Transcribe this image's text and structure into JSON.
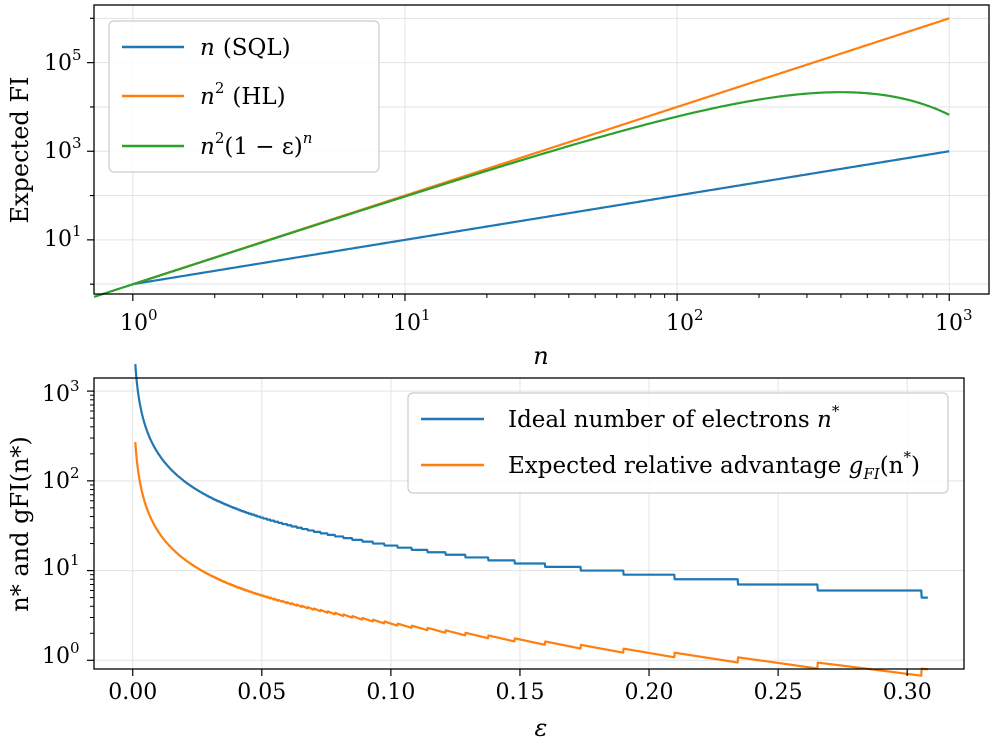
{
  "chart_data": [
    {
      "type": "line",
      "xscale": "log",
      "yscale": "log",
      "xlim": [
        0.72,
        1400
      ],
      "ylim": [
        0.6,
        2000000
      ],
      "x_ticks": [
        {
          "base": "10",
          "exp": "0"
        },
        {
          "base": "10",
          "exp": "1"
        },
        {
          "base": "10",
          "exp": "2"
        },
        {
          "base": "10",
          "exp": "3"
        }
      ],
      "y_ticks": [
        {
          "base": "10",
          "exp": "1"
        },
        {
          "base": "10",
          "exp": "3"
        },
        {
          "base": "10",
          "exp": "5"
        }
      ],
      "xlabel": "n",
      "ylabel": "Expected FI",
      "grid": true,
      "legend_position": "top-left",
      "epsilon": 0.005,
      "series": [
        {
          "name": "n (SQL)",
          "color": "#1f77b4",
          "formula": "n",
          "x_range": [
            1,
            1000
          ]
        },
        {
          "name": "n² (HL)",
          "color": "#ff7f0e",
          "formula": "n^2",
          "x_range": [
            1,
            1000
          ]
        },
        {
          "name": "n²(1 − ε)ⁿ",
          "color": "#2ca02c",
          "formula": "n^2 (1-eps)^n",
          "x_range": [
            0.72,
            1000
          ]
        }
      ]
    },
    {
      "type": "line",
      "xscale": "linear",
      "yscale": "log",
      "xlim": [
        -0.015,
        0.322
      ],
      "ylim": [
        0.8,
        1400
      ],
      "x_ticks": [
        "0.00",
        "0.05",
        "0.10",
        "0.15",
        "0.20",
        "0.25",
        "0.30"
      ],
      "y_ticks": [
        {
          "base": "10",
          "exp": "0"
        },
        {
          "base": "10",
          "exp": "1"
        },
        {
          "base": "10",
          "exp": "2"
        },
        {
          "base": "10",
          "exp": "3"
        }
      ],
      "xlabel": "ε",
      "ylabel": "n* and gFI(n*)",
      "grid": true,
      "legend_position": "top-right",
      "x_range": [
        0.001,
        0.308
      ],
      "series": [
        {
          "name": "Ideal number of electrons n*",
          "color": "#1f77b4",
          "formula": "n* = argmax n^2 (1-eps)^n (integer steps)"
        },
        {
          "name": "Expected relative advantage gFI(n*)",
          "color": "#ff7f0e",
          "formula": "n* (1-eps)^n*"
        }
      ]
    }
  ],
  "legend_labels": {
    "top": [
      {
        "main": "n",
        "suffix": "(SQL)"
      },
      {
        "main": "n",
        "sup": "2",
        "suffix": "(HL)"
      },
      {
        "main": "n",
        "sup": "2",
        "suffix": "(1 − ε)",
        "sup2": "n"
      }
    ],
    "bottom": [
      {
        "text": "Ideal number of electrons ",
        "math": "n",
        "sup": "*"
      },
      {
        "text": "Expected relative advantage ",
        "math": "g",
        "sub": "FI",
        "suffix": "(n",
        "sup": "*",
        "end": ")"
      }
    ]
  }
}
